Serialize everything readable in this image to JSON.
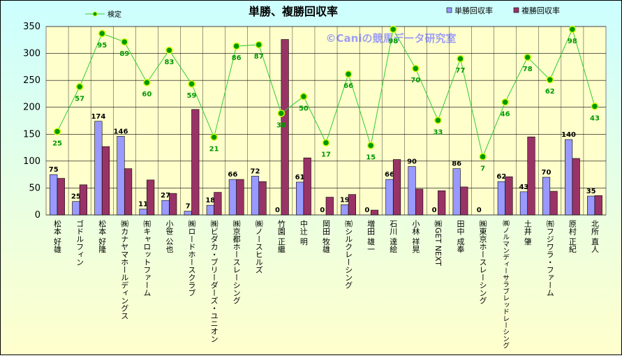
{
  "chart_data": {
    "type": "bar-line",
    "title": "単勝、複勝回収率",
    "watermark": "©Caniの競馬データ研究室",
    "categories": [
      "松本 好雄",
      "ゴドルフィン",
      "松本 好隆",
      "㈱カナヤマホールディングス",
      "㈲キャロットファーム",
      "小笹 公也",
      "㈱ロードホースクラブ",
      "㈱ビダカ・ブリーダーズ・ユニオン",
      "㈱京都ホースレーシング",
      "㈱ノースヒルズ",
      "竹園 正繼",
      "中辻 明",
      "岡田 牧雄",
      "㈲シルクレーシング",
      "増田 雄一",
      "石川 達絵",
      "小林 祥晃",
      "㈱GET NEXT",
      "田中 成奉",
      "㈱東京ホースレーシング",
      "㈱ノルマンディーサラブレッドレーシング",
      "土井 肇",
      "㈲フジワラ・ファーム",
      "原村 正紀",
      "北所 直人"
    ],
    "series": [
      {
        "name": "単勝回収率",
        "type": "bar",
        "color": "#9999ff",
        "labels": true,
        "values": [
          75,
          25,
          174,
          146,
          11,
          27,
          7,
          18,
          66,
          72,
          0,
          61,
          0,
          19,
          0,
          66,
          90,
          0,
          86,
          0,
          62,
          43,
          70,
          140,
          35
        ]
      },
      {
        "name": "複勝回収率",
        "type": "bar",
        "color": "#993366",
        "labels": false,
        "values": [
          68,
          56,
          127,
          86,
          65,
          40,
          196,
          42,
          66,
          62,
          326,
          106,
          33,
          38,
          9,
          103,
          48,
          45,
          52,
          0,
          71,
          145,
          44,
          105,
          36
        ]
      },
      {
        "name": "検定",
        "type": "line",
        "axis": "y2",
        "color": "#33cc33",
        "labels": true,
        "values": [
          25,
          57,
          95,
          89,
          60,
          83,
          59,
          21,
          86,
          87,
          38,
          50,
          17,
          66,
          15,
          98,
          70,
          33,
          77,
          7,
          46,
          78,
          62,
          98,
          43
        ]
      }
    ],
    "ylim": [
      0,
      350
    ],
    "yticks": [
      0,
      50,
      100,
      150,
      200,
      250,
      300,
      350
    ],
    "y2lim": [
      -34.6,
      100
    ],
    "grid": true
  }
}
